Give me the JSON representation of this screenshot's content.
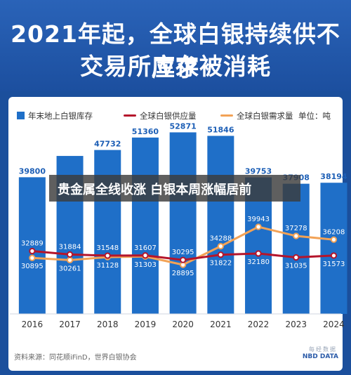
{
  "header": {
    "title_line1": "2021年起，全球白银持续供不应求",
    "title_line2": "交易所库存被消耗"
  },
  "legend": {
    "bar": "年末地上白银库存",
    "supply": "全球白银供应量",
    "demand": "全球白银需求量",
    "unit": "单位：吨"
  },
  "overlay": {
    "headline": "贵金属全线收涨 白银本周涨幅居前"
  },
  "footer": {
    "source": "资料来源：同花顺iFinD，世界白银协会",
    "logo_cn": "每经数据",
    "logo_en": "NBD DATA"
  },
  "colors": {
    "bar": "#1f6fc8",
    "supply": "#b5152b",
    "demand": "#f2a256"
  },
  "chart_data": {
    "type": "bar",
    "categories": [
      "2016",
      "2017",
      "2018",
      "2019",
      "2020",
      "2021",
      "2022",
      "2023",
      "2024"
    ],
    "series": [
      {
        "name": "年末地上白银库存",
        "type": "bar",
        "values": [
          39800,
          46000,
          47732,
          51360,
          52871,
          51846,
          39753,
          37908,
          38194
        ],
        "labels": [
          "39800",
          "",
          "47732",
          "51360",
          "52871",
          "51846",
          "39753",
          "37908",
          "38194"
        ]
      },
      {
        "name": "全球白银供应量",
        "type": "line",
        "values": [
          32889,
          31884,
          31548,
          31607,
          30295,
          31822,
          32180,
          31035,
          31573
        ]
      },
      {
        "name": "全球白银需求量",
        "type": "line",
        "values": [
          30895,
          30261,
          31128,
          31303,
          28895,
          34288,
          39943,
          37278,
          36208
        ]
      }
    ]
  }
}
